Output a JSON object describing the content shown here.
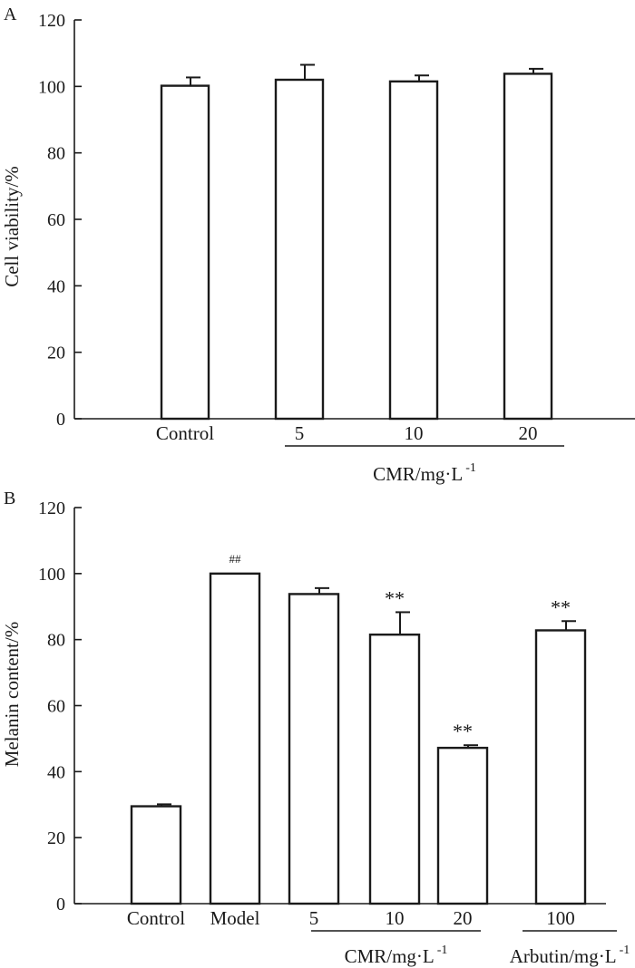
{
  "chart_data": [
    {
      "type": "bar",
      "panel_label": "A",
      "ylabel": "Cell viability/%",
      "ylim": [
        0,
        120
      ],
      "yticks": [
        "0",
        "20",
        "40",
        "60",
        "80",
        "100",
        "120"
      ],
      "categories": [
        "Control",
        "5",
        "10",
        "20"
      ],
      "values": [
        100.2,
        102.0,
        101.5,
        103.8
      ],
      "errors": [
        2.5,
        4.5,
        1.8,
        1.5
      ],
      "annotations": [
        "",
        "",
        "",
        ""
      ],
      "group_labels": [
        {
          "text": "CMR/mg·L",
          "superscript": "-1",
          "start": 1,
          "end": 3
        }
      ]
    },
    {
      "type": "bar",
      "panel_label": "B",
      "ylabel": "Melanin content/%",
      "ylim": [
        0,
        120
      ],
      "yticks": [
        "0",
        "20",
        "40",
        "60",
        "80",
        "100",
        "120"
      ],
      "categories": [
        "Control",
        "Model",
        "5",
        "10",
        "20",
        "100"
      ],
      "values": [
        29.5,
        100.0,
        93.8,
        81.5,
        47.2,
        82.8
      ],
      "errors": [
        0.6,
        0.0,
        1.8,
        6.8,
        0.8,
        2.8
      ],
      "annotations": [
        "",
        "##",
        "",
        "**",
        "**",
        "**"
      ],
      "group_labels": [
        {
          "text": "CMR/mg·L",
          "superscript": "-1",
          "start": 2,
          "end": 4
        },
        {
          "text": "Arbutin/mg·L",
          "superscript": "-1",
          "start": 5,
          "end": 5
        }
      ]
    }
  ]
}
